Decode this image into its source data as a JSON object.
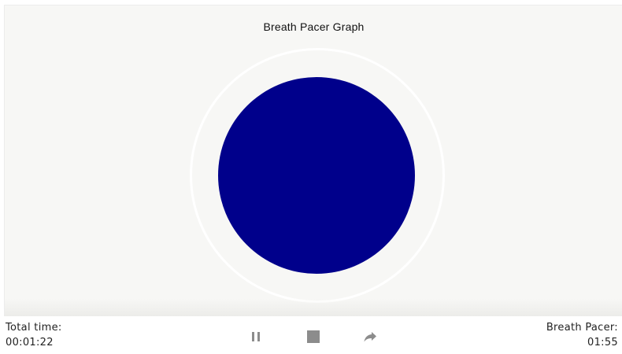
{
  "graph": {
    "title": "Breath Pacer Graph",
    "pacer_color": "#00008b"
  },
  "footer": {
    "total_time_label": "Total time:",
    "total_time_value": "00:01:22",
    "breath_pacer_label": "Breath Pacer:",
    "breath_pacer_value": "01:55"
  },
  "controls": {
    "pause_icon": "pause-icon",
    "stop_icon": "stop-icon",
    "skip_icon": "forward-arrow-icon",
    "icon_color": "#8c8c8c"
  }
}
